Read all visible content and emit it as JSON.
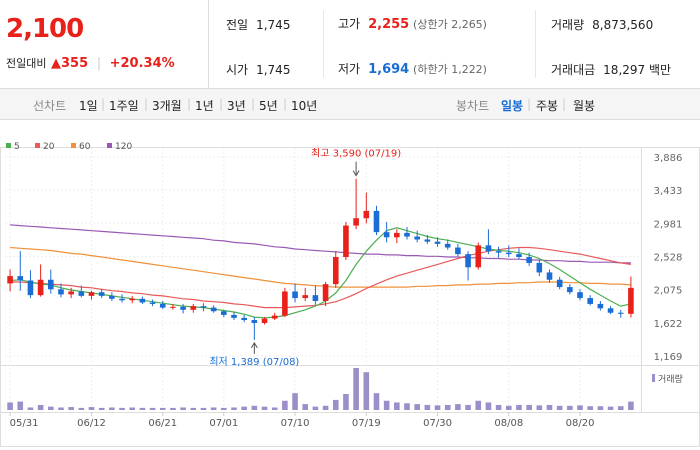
{
  "quote": {
    "price": "2,100",
    "change_label": "전일대비",
    "change_arrow": "▲",
    "change_value": "355",
    "change_pct": "+20.34%"
  },
  "stats": {
    "prev_close_label": "전일",
    "prev_close": "1,745",
    "open_label": "시가",
    "open": "1,745",
    "high_label": "고가",
    "high": "2,255",
    "upper_limit": "(상한가 2,265)",
    "low_label": "저가",
    "low": "1,694",
    "lower_limit": "(하한가 1,222)",
    "volume_label": "거래량",
    "volume": "8,873,560",
    "amount_label": "거래대금",
    "amount": "18,297 백만"
  },
  "toolbar": {
    "line_label": "선차트",
    "periods": [
      "1일",
      "1주일",
      "3개월",
      "1년",
      "3년",
      "5년",
      "10년"
    ],
    "candle_label": "봉차트",
    "candle_periods": [
      "일봉",
      "주봉",
      "월봉"
    ],
    "candle_selected": "일봉"
  },
  "colors": {
    "up": "#e8211a",
    "down": "#1a6dd4",
    "ma5": "#4caf50",
    "ma20": "#e85a5a",
    "ma60": "#f0913a",
    "ma120": "#9b59b6",
    "volume": "#9b8ec9"
  },
  "chart_data": {
    "type": "candlestick",
    "legend": [
      {
        "name": "5",
        "color": "#4caf50"
      },
      {
        "name": "20",
        "color": "#e85a5a"
      },
      {
        "name": "60",
        "color": "#f0913a"
      },
      {
        "name": "120",
        "color": "#9b59b6"
      }
    ],
    "y_ticks": [
      "3,886",
      "3,433",
      "2,981",
      "2,528",
      "2,075",
      "1,622",
      "1,169"
    ],
    "y_tick_values": [
      3886,
      3433,
      2981,
      2528,
      2075,
      1622,
      1169
    ],
    "ylim": [
      1169,
      3886
    ],
    "x_ticks": [
      {
        "label": "05/31",
        "index": 0
      },
      {
        "label": "06/12",
        "index": 8
      },
      {
        "label": "06/21",
        "index": 15
      },
      {
        "label": "07/01",
        "index": 21
      },
      {
        "label": "07/10",
        "index": 28
      },
      {
        "label": "07/19",
        "index": 35
      },
      {
        "label": "07/30",
        "index": 42
      },
      {
        "label": "08/08",
        "index": 49
      },
      {
        "label": "08/20",
        "index": 56
      }
    ],
    "candles": [
      [
        2160,
        2350,
        2050,
        2260
      ],
      [
        2260,
        2600,
        2060,
        2200
      ],
      [
        2200,
        2340,
        1960,
        2000
      ],
      [
        2000,
        2420,
        1980,
        2210
      ],
      [
        2210,
        2350,
        2020,
        2080
      ],
      [
        2080,
        2160,
        1970,
        2010
      ],
      [
        2010,
        2100,
        1960,
        2050
      ],
      [
        2050,
        2130,
        1970,
        1990
      ],
      [
        1990,
        2060,
        1940,
        2040
      ],
      [
        2040,
        2080,
        1960,
        1990
      ],
      [
        1990,
        2040,
        1920,
        1950
      ],
      [
        1950,
        2010,
        1900,
        1930
      ],
      [
        1930,
        1990,
        1890,
        1950
      ],
      [
        1950,
        1980,
        1880,
        1900
      ],
      [
        1900,
        1940,
        1850,
        1880
      ],
      [
        1880,
        1920,
        1810,
        1830
      ],
      [
        1830,
        1880,
        1800,
        1840
      ],
      [
        1840,
        1880,
        1750,
        1800
      ],
      [
        1800,
        1880,
        1760,
        1850
      ],
      [
        1850,
        1890,
        1780,
        1830
      ],
      [
        1830,
        1860,
        1760,
        1780
      ],
      [
        1780,
        1800,
        1700,
        1730
      ],
      [
        1730,
        1770,
        1660,
        1690
      ],
      [
        1690,
        1730,
        1630,
        1660
      ],
      [
        1660,
        1700,
        1389,
        1620
      ],
      [
        1620,
        1700,
        1600,
        1680
      ],
      [
        1680,
        1760,
        1660,
        1720
      ],
      [
        1720,
        2100,
        1700,
        2050
      ],
      [
        2050,
        2160,
        1900,
        1960
      ],
      [
        1960,
        2100,
        1920,
        2000
      ],
      [
        2000,
        2130,
        1870,
        1920
      ],
      [
        1920,
        2180,
        1850,
        2150
      ],
      [
        2150,
        2600,
        2100,
        2520
      ],
      [
        2520,
        3000,
        2480,
        2950
      ],
      [
        2950,
        3590,
        2900,
        3050
      ],
      [
        3050,
        3400,
        2980,
        3150
      ],
      [
        3150,
        3220,
        2820,
        2860
      ],
      [
        2860,
        3000,
        2720,
        2790
      ],
      [
        2790,
        2900,
        2710,
        2850
      ],
      [
        2850,
        2930,
        2760,
        2800
      ],
      [
        2800,
        2880,
        2720,
        2760
      ],
      [
        2760,
        2820,
        2700,
        2730
      ],
      [
        2730,
        2790,
        2660,
        2700
      ],
      [
        2700,
        2760,
        2620,
        2650
      ],
      [
        2650,
        2700,
        2530,
        2560
      ],
      [
        2560,
        2600,
        2200,
        2380
      ],
      [
        2380,
        2720,
        2350,
        2680
      ],
      [
        2680,
        2900,
        2560,
        2600
      ],
      [
        2600,
        2660,
        2510,
        2580
      ],
      [
        2580,
        2680,
        2520,
        2560
      ],
      [
        2560,
        2640,
        2490,
        2520
      ],
      [
        2520,
        2580,
        2400,
        2440
      ],
      [
        2440,
        2480,
        2260,
        2310
      ],
      [
        2310,
        2350,
        2170,
        2210
      ],
      [
        2210,
        2250,
        2080,
        2110
      ],
      [
        2110,
        2150,
        2010,
        2040
      ],
      [
        2040,
        2080,
        1930,
        1960
      ],
      [
        1960,
        2000,
        1860,
        1880
      ],
      [
        1880,
        1920,
        1790,
        1820
      ],
      [
        1820,
        1850,
        1740,
        1760
      ],
      [
        1760,
        1800,
        1694,
        1745
      ],
      [
        1745,
        2255,
        1694,
        2100
      ]
    ],
    "ma5": [
      2200,
      2210,
      2180,
      2150,
      2140,
      2100,
      2070,
      2050,
      2030,
      2010,
      1990,
      1970,
      1950,
      1930,
      1910,
      1890,
      1870,
      1850,
      1840,
      1830,
      1810,
      1790,
      1770,
      1740,
      1700,
      1690,
      1700,
      1720,
      1760,
      1800,
      1850,
      1920,
      2030,
      2200,
      2420,
      2600,
      2750,
      2880,
      2920,
      2880,
      2840,
      2800,
      2770,
      2750,
      2720,
      2690,
      2660,
      2630,
      2610,
      2600,
      2580,
      2550,
      2500,
      2430,
      2350,
      2260,
      2170,
      2080,
      2000,
      1920,
      1850,
      1880
    ],
    "ma20": [
      2180,
      2180,
      2170,
      2160,
      2150,
      2140,
      2130,
      2110,
      2100,
      2080,
      2060,
      2050,
      2030,
      2020,
      2000,
      1990,
      1970,
      1950,
      1940,
      1920,
      1910,
      1900,
      1880,
      1870,
      1850,
      1830,
      1830,
      1830,
      1840,
      1850,
      1860,
      1880,
      1910,
      1960,
      2020,
      2090,
      2150,
      2210,
      2260,
      2300,
      2340,
      2380,
      2420,
      2460,
      2500,
      2540,
      2570,
      2600,
      2620,
      2640,
      2650,
      2650,
      2640,
      2620,
      2600,
      2580,
      2560,
      2530,
      2500,
      2470,
      2440,
      2420
    ],
    "ma60": [
      2650,
      2640,
      2630,
      2620,
      2610,
      2590,
      2570,
      2560,
      2540,
      2520,
      2500,
      2480,
      2460,
      2440,
      2420,
      2400,
      2380,
      2360,
      2340,
      2320,
      2300,
      2280,
      2260,
      2240,
      2220,
      2200,
      2180,
      2160,
      2150,
      2140,
      2130,
      2120,
      2110,
      2110,
      2110,
      2110,
      2110,
      2110,
      2110,
      2110,
      2120,
      2120,
      2130,
      2130,
      2140,
      2140,
      2150,
      2150,
      2160,
      2160,
      2170,
      2170,
      2180,
      2180,
      2180,
      2170,
      2170,
      2160,
      2160,
      2150,
      2150,
      2140
    ],
    "ma120": [
      2960,
      2950,
      2940,
      2930,
      2920,
      2910,
      2900,
      2890,
      2880,
      2870,
      2860,
      2850,
      2840,
      2830,
      2820,
      2810,
      2800,
      2790,
      2780,
      2770,
      2750,
      2740,
      2720,
      2710,
      2700,
      2680,
      2660,
      2650,
      2630,
      2620,
      2610,
      2600,
      2590,
      2580,
      2570,
      2560,
      2560,
      2550,
      2550,
      2540,
      2540,
      2530,
      2530,
      2520,
      2520,
      2510,
      2510,
      2500,
      2500,
      2490,
      2490,
      2480,
      2480,
      2470,
      2470,
      2460,
      2460,
      2450,
      2450,
      2450,
      2440,
      2440
    ],
    "volume": [
      18,
      20,
      6,
      12,
      8,
      6,
      7,
      5,
      7,
      5,
      6,
      5,
      6,
      5,
      5,
      5,
      5,
      6,
      5,
      5,
      6,
      5,
      6,
      8,
      10,
      8,
      6,
      22,
      40,
      14,
      8,
      10,
      24,
      38,
      100,
      90,
      40,
      22,
      18,
      16,
      14,
      12,
      11,
      12,
      14,
      12,
      22,
      18,
      12,
      10,
      12,
      12,
      11,
      12,
      10,
      10,
      11,
      9,
      9,
      8,
      9,
      20
    ],
    "annotations": {
      "high_label": "최고 3,590 (07/19)",
      "high_index": 34,
      "high_value": 3590,
      "low_label": "최저 1,389 (07/08)",
      "low_index": 24,
      "low_value": 1389
    },
    "volume_legend": "거래량"
  }
}
